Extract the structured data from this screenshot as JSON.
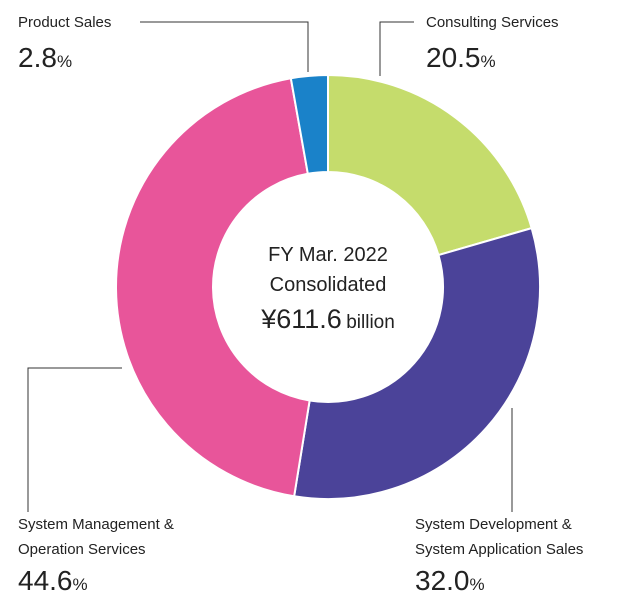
{
  "chart_data": {
    "type": "donut",
    "categories": [
      "Consulting Services",
      "System Development &\nSystem Application Sales",
      "System Management &\nOperation Services",
      "Product Sales"
    ],
    "values": [
      20.5,
      32.0,
      44.6,
      2.8
    ],
    "value_labels": [
      "20.5",
      "32.0",
      "44.6",
      "2.8"
    ],
    "unit": "%",
    "colors": [
      "#c5dc6c",
      "#4b4399",
      "#e8559a",
      "#1a82c9"
    ],
    "center_lines": [
      "FY Mar. 2022",
      "Consolidated"
    ],
    "total": {
      "label": "¥611.6",
      "unit": "billion"
    }
  }
}
